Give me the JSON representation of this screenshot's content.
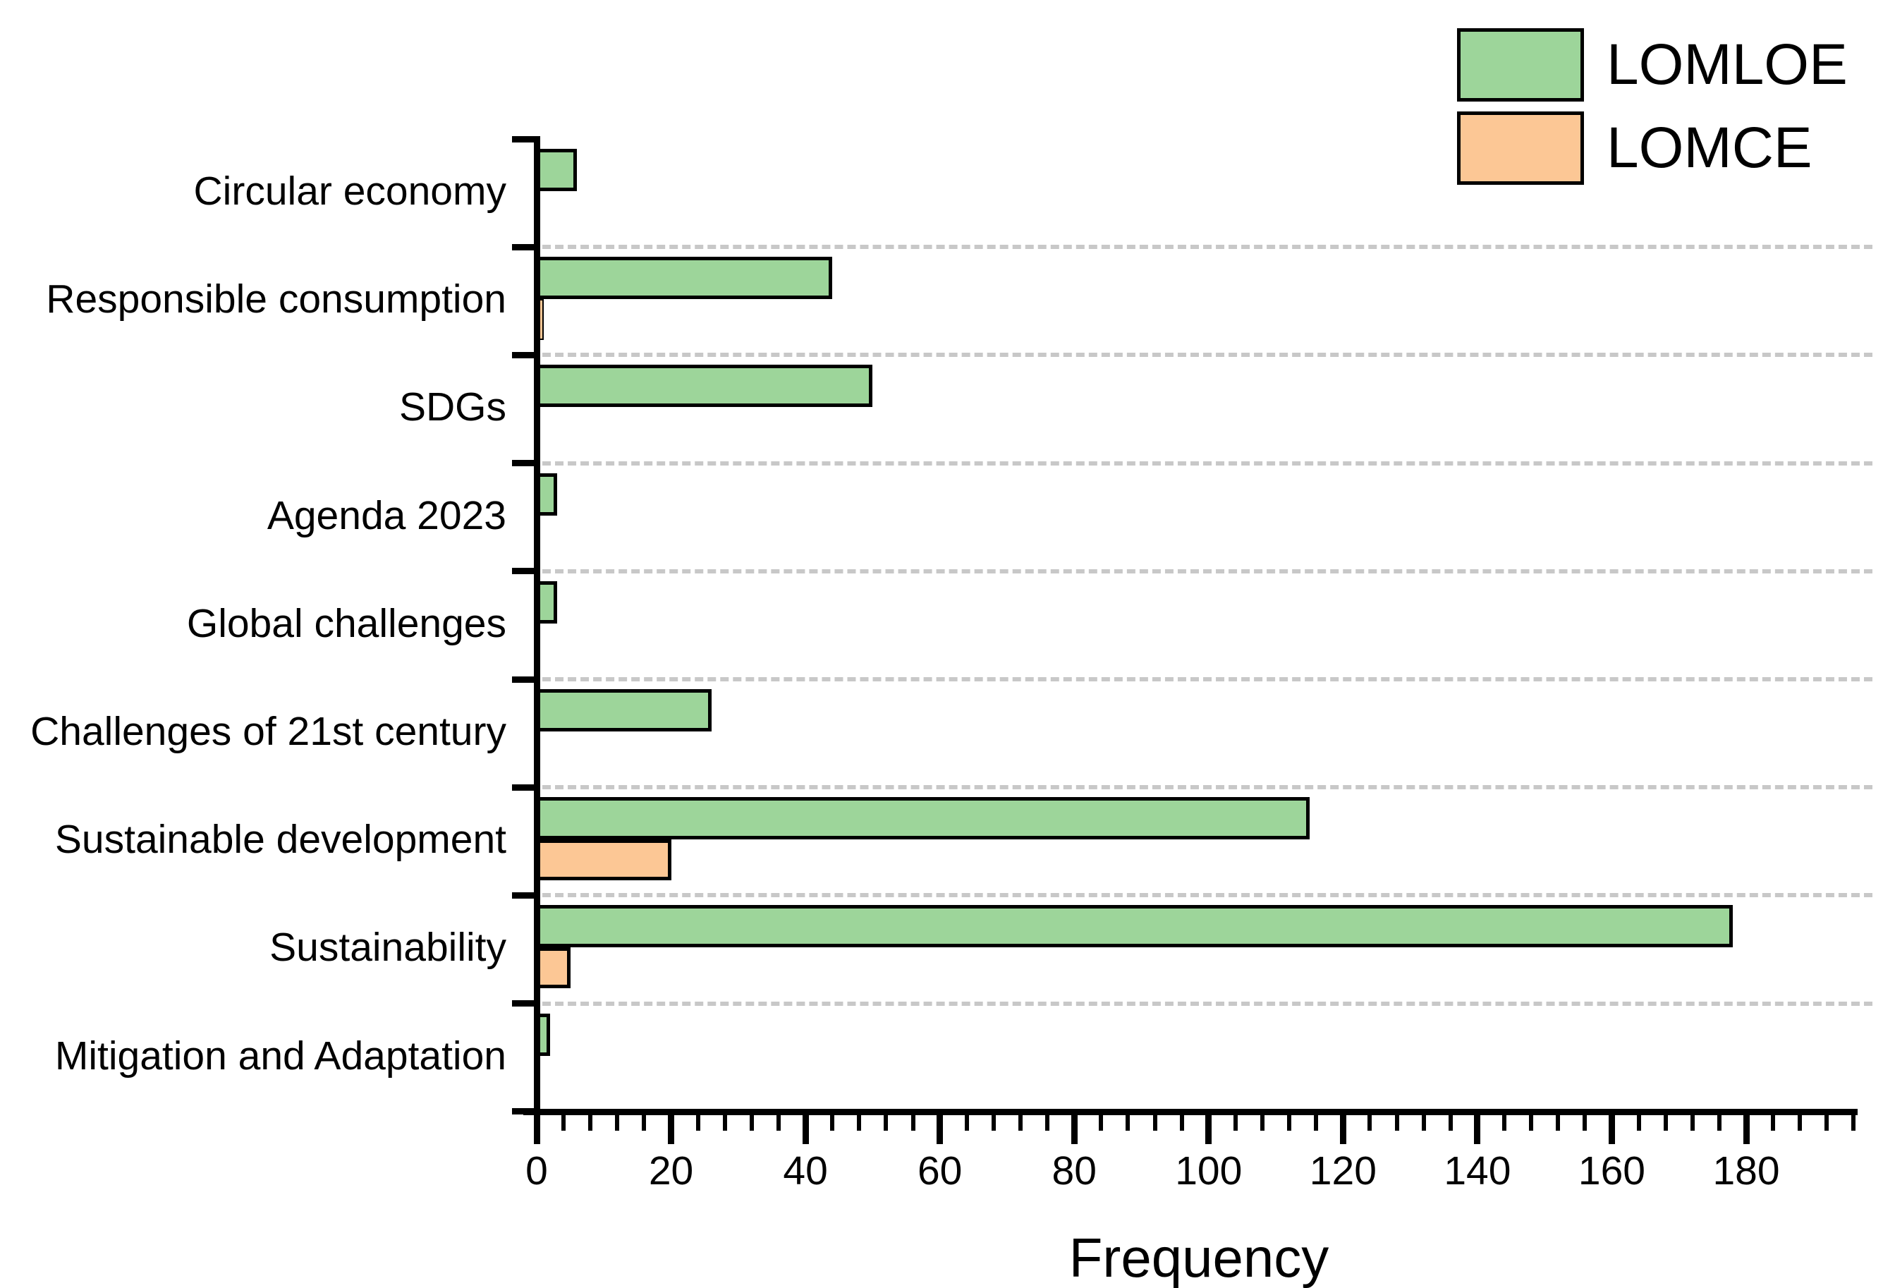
{
  "chart_data": {
    "type": "bar",
    "orientation": "horizontal",
    "title": "",
    "xlabel": "Frequency",
    "ylabel": "",
    "xlim": [
      0,
      196
    ],
    "x_major_ticks": [
      0,
      20,
      40,
      60,
      80,
      100,
      120,
      140,
      160,
      180
    ],
    "x_minor_step": 4,
    "grid": "horizontal dashed between category rows",
    "legend_position": "top-right",
    "categories": [
      "Circular economy",
      "Responsible consumption",
      "SDGs",
      "Agenda 2023",
      "Global challenges",
      "Challenges of 21st century",
      "Sustainable development",
      "Sustainability",
      "Mitigation and Adaptation"
    ],
    "series": [
      {
        "name": "LOMLOE",
        "color": "#9dd59a",
        "values": [
          6,
          44,
          50,
          3,
          3,
          26,
          115,
          178,
          2
        ]
      },
      {
        "name": "LOMCE",
        "color": "#fcc795",
        "values": [
          0,
          1,
          0,
          0,
          0,
          0,
          20,
          5,
          0
        ]
      }
    ]
  },
  "colors": {
    "bar_border": "#000000",
    "gridline": "#c8c8c8",
    "axis": "#000000"
  }
}
